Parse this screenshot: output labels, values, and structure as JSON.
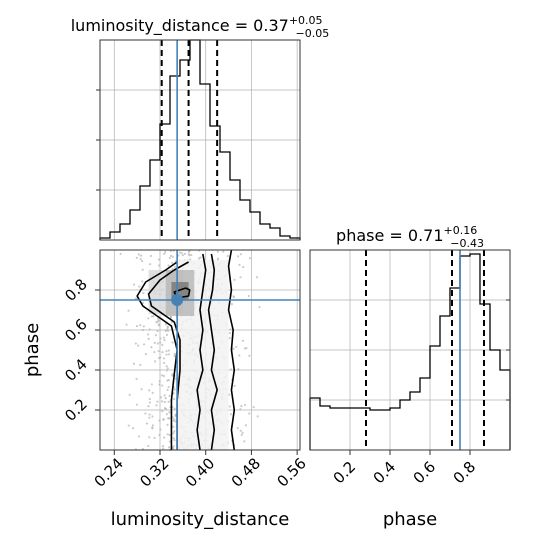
{
  "chart_data": {
    "type": "corner",
    "parameters": [
      "luminosity_distance",
      "phase"
    ],
    "truths": {
      "luminosity_distance": 0.35,
      "phase": 0.75
    },
    "panels": [
      {
        "id": "hist-luminosity-distance",
        "type": "histogram",
        "parameter": "luminosity_distance",
        "title": {
          "prefix": "luminosity_distance = 0.37",
          "plus": "+0.05",
          "minus": "−0.05"
        },
        "xlim": [
          0.215,
          0.565
        ],
        "ylim": [
          0,
          1.0
        ],
        "bin_edges": [
          0.215,
          0.2325,
          0.25,
          0.2675,
          0.285,
          0.3025,
          0.32,
          0.3375,
          0.355,
          0.3725,
          0.39,
          0.4075,
          0.425,
          0.4425,
          0.46,
          0.4775,
          0.495,
          0.5125,
          0.53,
          0.5475,
          0.565
        ],
        "counts": [
          0.01,
          0.04,
          0.08,
          0.15,
          0.27,
          0.4,
          0.58,
          0.82,
          0.9,
          1.0,
          0.78,
          0.57,
          0.44,
          0.3,
          0.2,
          0.14,
          0.08,
          0.06,
          0.02,
          0.01
        ],
        "quantile_lines": [
          0.323,
          0.37,
          0.42
        ],
        "grid": true
      },
      {
        "id": "hist-phase",
        "type": "histogram",
        "parameter": "phase",
        "title": {
          "prefix": "phase = 0.71",
          "plus": "+0.16",
          "minus": "−0.43"
        },
        "xlim": [
          0.0,
          1.0
        ],
        "ylim": [
          0,
          1.0
        ],
        "xticks": [
          0.2,
          0.4,
          0.6,
          0.8
        ],
        "bin_edges": [
          0.0,
          0.05,
          0.1,
          0.15,
          0.2,
          0.25,
          0.3,
          0.35,
          0.4,
          0.45,
          0.5,
          0.55,
          0.6,
          0.65,
          0.7,
          0.75,
          0.8,
          0.85,
          0.9,
          0.95,
          1.0
        ],
        "counts": [
          0.26,
          0.22,
          0.21,
          0.21,
          0.21,
          0.21,
          0.2,
          0.2,
          0.21,
          0.25,
          0.29,
          0.36,
          0.52,
          0.67,
          0.81,
          0.97,
          0.98,
          0.73,
          0.5,
          0.4
        ],
        "quantile_lines": [
          0.28,
          0.71,
          0.87
        ],
        "grid": true
      },
      {
        "id": "joint-luminosity-distance-phase",
        "type": "2d-scatter-contour",
        "x": "luminosity_distance",
        "y": "phase",
        "xlim": [
          0.215,
          0.565
        ],
        "ylim": [
          0.0,
          1.0
        ],
        "xticks": [
          0.24,
          0.32,
          0.4,
          0.48,
          0.56
        ],
        "yticks": [
          0.2,
          0.4,
          0.6,
          0.8
        ],
        "grid": true,
        "contours": [
          [
            [
              0.35,
              0.94
            ],
            [
              0.33,
              0.9
            ],
            [
              0.295,
              0.84
            ],
            [
              0.28,
              0.77
            ],
            [
              0.29,
              0.72
            ],
            [
              0.315,
              0.67
            ],
            [
              0.34,
              0.62
            ],
            [
              0.35,
              0.5
            ],
            [
              0.345,
              0.38
            ],
            [
              0.34,
              0.25
            ],
            [
              0.34,
              0.1
            ],
            [
              0.34,
              0.0
            ]
          ],
          [
            [
              0.37,
              0.94
            ],
            [
              0.345,
              0.9
            ],
            [
              0.32,
              0.85
            ],
            [
              0.3,
              0.78
            ],
            [
              0.305,
              0.72
            ],
            [
              0.325,
              0.68
            ],
            [
              0.345,
              0.64
            ],
            [
              0.355,
              0.55
            ],
            [
              0.355,
              0.4
            ],
            [
              0.35,
              0.25
            ],
            [
              0.35,
              0.1
            ],
            [
              0.35,
              0.0
            ]
          ],
          [
            [
              0.365,
              0.81
            ],
            [
              0.345,
              0.79
            ],
            [
              0.35,
              0.76
            ],
            [
              0.37,
              0.77
            ],
            [
              0.372,
              0.8
            ],
            [
              0.365,
              0.81
            ]
          ],
          [
            [
              0.395,
              0.98
            ],
            [
              0.4,
              0.9
            ],
            [
              0.395,
              0.8
            ],
            [
              0.39,
              0.7
            ],
            [
              0.395,
              0.6
            ],
            [
              0.39,
              0.5
            ],
            [
              0.395,
              0.4
            ],
            [
              0.385,
              0.3
            ],
            [
              0.39,
              0.2
            ],
            [
              0.385,
              0.1
            ],
            [
              0.39,
              0.0
            ]
          ],
          [
            [
              0.41,
              0.98
            ],
            [
              0.415,
              0.9
            ],
            [
              0.412,
              0.8
            ],
            [
              0.405,
              0.7
            ],
            [
              0.41,
              0.6
            ],
            [
              0.415,
              0.5
            ],
            [
              0.41,
              0.4
            ],
            [
              0.42,
              0.3
            ],
            [
              0.41,
              0.2
            ],
            [
              0.415,
              0.1
            ],
            [
              0.41,
              0.0
            ]
          ],
          [
            [
              0.445,
              1.0
            ],
            [
              0.44,
              0.92
            ],
            [
              0.445,
              0.8
            ],
            [
              0.44,
              0.7
            ],
            [
              0.448,
              0.6
            ],
            [
              0.445,
              0.5
            ],
            [
              0.45,
              0.4
            ],
            [
              0.445,
              0.3
            ],
            [
              0.45,
              0.2
            ],
            [
              0.445,
              0.1
            ],
            [
              0.45,
              0.0
            ]
          ]
        ],
        "density_cells": [
          {
            "x": [
              0.34,
              0.37
            ],
            "y": [
              0.75,
              0.84
            ],
            "level": 4
          },
          {
            "x": [
              0.33,
              0.38
            ],
            "y": [
              0.67,
              0.9
            ],
            "level": 3
          },
          {
            "x": [
              0.3,
              0.36
            ],
            "y": [
              0.68,
              0.9
            ],
            "level": 2
          },
          {
            "x": [
              0.35,
              0.44
            ],
            "y": [
              0.0,
              0.95
            ],
            "level": 1
          }
        ]
      }
    ],
    "x_axis_labels": [
      "luminosity_distance",
      "phase"
    ],
    "y_axis_labels": [
      "phase"
    ],
    "colors": {
      "truth": "#4682b4",
      "line": "#000000",
      "grid": "#b0b0b0",
      "scatter": "#b5b5b5"
    }
  }
}
